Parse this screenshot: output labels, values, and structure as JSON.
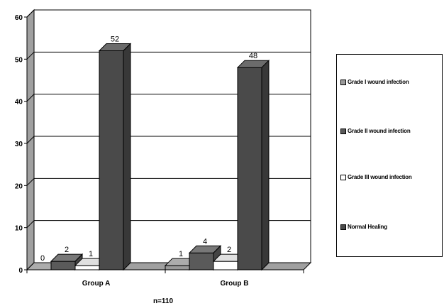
{
  "chart_data": {
    "type": "bar",
    "categories": [
      "Group A",
      "Group B"
    ],
    "series": [
      {
        "name": "Grade I wound infection",
        "values": [
          0,
          1
        ],
        "color": "#9a9a9a"
      },
      {
        "name": "Grade II wound infection",
        "values": [
          2,
          4
        ],
        "color": "#5a5a5a"
      },
      {
        "name": "Grade III wound infection",
        "values": [
          1,
          2
        ],
        "color": "#ffffff"
      },
      {
        "name": "Normal Healing",
        "values": [
          52,
          48
        ],
        "color": "#4a4a4a"
      }
    ],
    "ylim": [
      0,
      60
    ],
    "yticks": [
      0,
      10,
      20,
      30,
      40,
      50,
      60
    ],
    "xlabel": "n=110",
    "ylabel": "",
    "title": "",
    "grid": true,
    "legend_position": "right",
    "three_d": true
  }
}
